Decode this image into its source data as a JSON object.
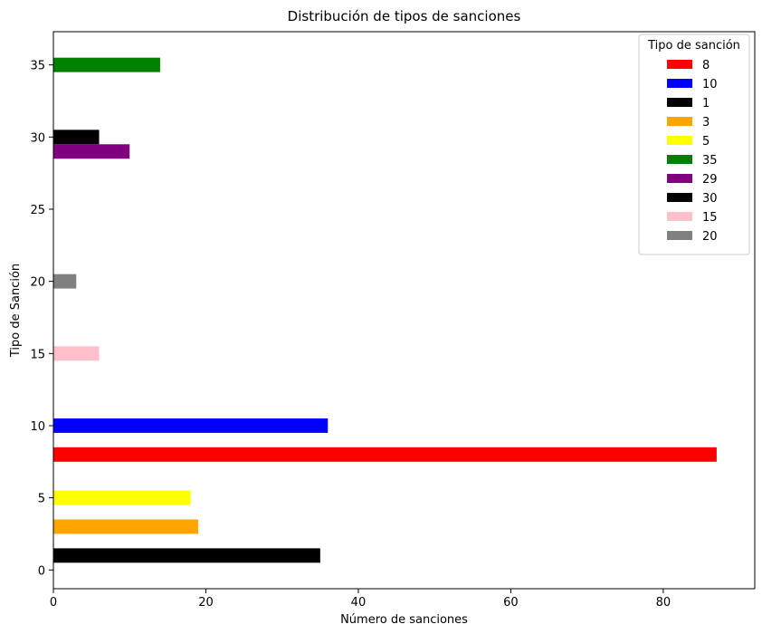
{
  "chart_data": {
    "type": "bar",
    "orientation": "horizontal",
    "title": "Distribución de tipos de sanciones",
    "xlabel": "Número de sanciones",
    "ylabel": "Tipo de Sanción",
    "xlim": [
      0,
      92
    ],
    "ylim": [
      -1.3,
      37.3
    ],
    "xticks": [
      0,
      20,
      40,
      60,
      80
    ],
    "yticks": [
      0,
      5,
      10,
      15,
      20,
      25,
      30,
      35
    ],
    "bar_height": 1,
    "grid": false,
    "legend": {
      "title": "Tipo de sanción",
      "position": "top-right"
    },
    "bars": [
      {
        "category": "8",
        "y": 8,
        "value": 87,
        "color": "#ff0000"
      },
      {
        "category": "10",
        "y": 10,
        "value": 36,
        "color": "#0000ff"
      },
      {
        "category": "1",
        "y": 1,
        "value": 35,
        "color": "#000000"
      },
      {
        "category": "3",
        "y": 3,
        "value": 19,
        "color": "#ffa500"
      },
      {
        "category": "5",
        "y": 5,
        "value": 18,
        "color": "#ffff00"
      },
      {
        "category": "35",
        "y": 35,
        "value": 14,
        "color": "#008000"
      },
      {
        "category": "29",
        "y": 29,
        "value": 10,
        "color": "#800080"
      },
      {
        "category": "30",
        "y": 30,
        "value": 6,
        "color": "#000000"
      },
      {
        "category": "15",
        "y": 15,
        "value": 6,
        "color": "#ffc0cb"
      },
      {
        "category": "20",
        "y": 20,
        "value": 3,
        "color": "#808080"
      }
    ]
  }
}
